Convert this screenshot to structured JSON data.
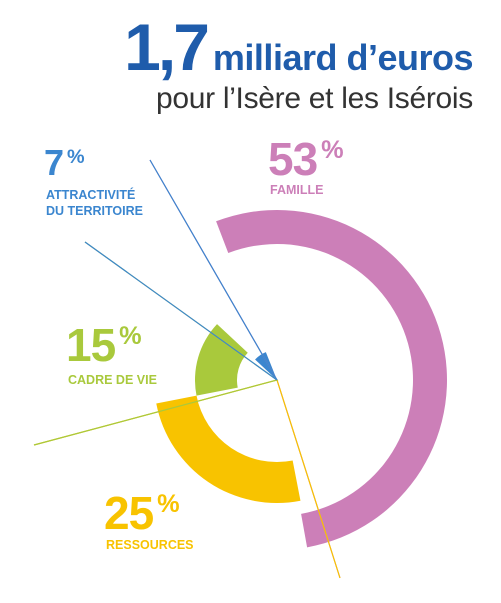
{
  "title": {
    "amount": "1,7",
    "amount_rest": "milliard d’euros",
    "subtitle": "pour l’Isère et les Isérois"
  },
  "chart_data": {
    "type": "pie",
    "title": "1,7 milliard d’euros pour l’Isère et les Isérois",
    "slices": [
      {
        "label": "FAMILLE",
        "value": 53,
        "display": "53",
        "unit": "%",
        "color": "#cc7fb8"
      },
      {
        "label": "RESSOURCES",
        "value": 25,
        "display": "25",
        "unit": "%",
        "color": "#f8c300"
      },
      {
        "label": "CADRE DE VIE",
        "value": 15,
        "display": "15",
        "unit": "%",
        "color": "#a9c93c"
      },
      {
        "label": "ATTRACTIVITÉ DU TERRITOIRE",
        "label_lines": [
          "ATTRACTIVITÉ",
          "DU TERRITOIRE"
        ],
        "value": 7,
        "display": "7",
        "unit": "%",
        "color": "#3b86cf"
      }
    ]
  }
}
